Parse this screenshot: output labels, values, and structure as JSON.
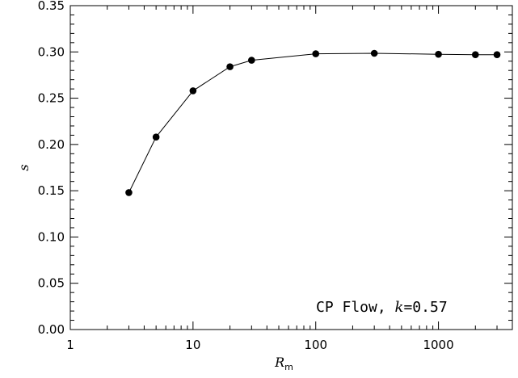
{
  "chart_data": {
    "type": "scatter",
    "title": "",
    "x_scale": "log",
    "xlim": [
      1,
      4000
    ],
    "ylim": [
      0.0,
      0.35
    ],
    "x_ticks": [
      1,
      10,
      100,
      1000
    ],
    "x_tick_labels": [
      "1",
      "10",
      "100",
      "1000"
    ],
    "y_ticks": [
      0.0,
      0.05,
      0.1,
      0.15,
      0.2,
      0.25,
      0.3,
      0.35
    ],
    "y_tick_labels": [
      "0.00",
      "0.05",
      "0.10",
      "0.15",
      "0.20",
      "0.25",
      "0.30",
      "0.35"
    ],
    "xlabel_main": "R",
    "xlabel_sub": "m",
    "ylabel": "s",
    "grid": false,
    "series": [
      {
        "x": [
          3,
          5,
          10,
          20,
          30,
          100,
          300,
          1000,
          2000,
          3000
        ],
        "y": [
          0.148,
          0.208,
          0.258,
          0.284,
          0.291,
          0.298,
          0.2985,
          0.2975,
          0.297,
          0.297
        ],
        "marker": "filled-circle",
        "line": "solid",
        "color": "#000000"
      }
    ],
    "annotation": {
      "prefix": "CP Flow, ",
      "var": "k",
      "suffix": "=0.57"
    }
  }
}
